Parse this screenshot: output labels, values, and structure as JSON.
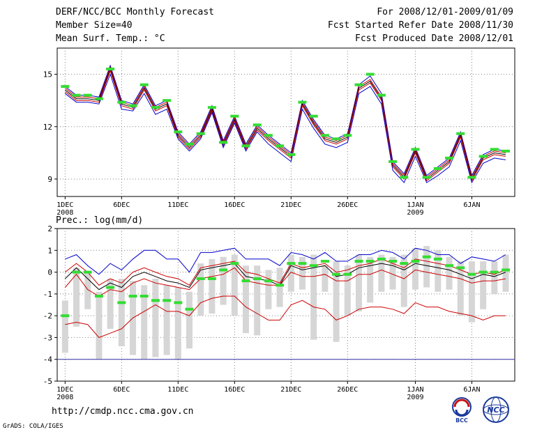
{
  "header": {
    "title": "DERF/NCC/BCC Monthly Forecast",
    "member_size": "Member Size=40",
    "variable": "Mean Surf. Temp.: °C",
    "period": "For 2008/12/01-2009/01/09",
    "start_date": "Fcst Started Refer Date 2008/11/30",
    "produced_date": "Fcst Produced Date 2008/12/01"
  },
  "footer": {
    "url": "http://cmdp.ncc.cma.gov.cn",
    "credit": "GrADS: COLA/IGES",
    "logo_bcc": "BCC",
    "logo_ncc": "NCC"
  },
  "colors": {
    "ensemble_mean": "#000000",
    "spread_bounds": "#cc0000",
    "extreme_bounds": "#0000cc",
    "observation_marks": "#33dd33",
    "box_range": "#d6d6d6",
    "grid": "#808080"
  },
  "chart_data": [
    {
      "type": "line",
      "title": "Mean Surf. Temp.: °C",
      "xlabel": "",
      "ylabel": "",
      "x": [
        1,
        2,
        3,
        4,
        5,
        6,
        7,
        8,
        9,
        10,
        11,
        12,
        13,
        14,
        15,
        16,
        17,
        18,
        19,
        20,
        21,
        22,
        23,
        24,
        25,
        26,
        27,
        28,
        29,
        30,
        31,
        32,
        33,
        34,
        35,
        36,
        37,
        38,
        39,
        40
      ],
      "xticks": [
        {
          "day": 1,
          "label": "1DEC",
          "sub": "2008"
        },
        {
          "day": 6,
          "label": "6DEC",
          "sub": ""
        },
        {
          "day": 11,
          "label": "11DEC",
          "sub": ""
        },
        {
          "day": 16,
          "label": "16DEC",
          "sub": ""
        },
        {
          "day": 21,
          "label": "21DEC",
          "sub": ""
        },
        {
          "day": 26,
          "label": "26DEC",
          "sub": ""
        },
        {
          "day": 32,
          "label": "1JAN",
          "sub": "2009"
        },
        {
          "day": 37,
          "label": "6JAN",
          "sub": ""
        }
      ],
      "yticks": [
        9,
        12,
        15
      ],
      "ylim": [
        8,
        16.5
      ],
      "xlim": [
        0.3,
        40.8
      ],
      "series": [
        {
          "name": "max",
          "color": "#0000cc",
          "values": [
            14.3,
            13.8,
            13.8,
            13.7,
            15.5,
            13.5,
            13.3,
            14.4,
            13.2,
            13.5,
            11.7,
            11.0,
            11.7,
            13.2,
            11.2,
            12.6,
            11.0,
            12.1,
            11.5,
            11.0,
            10.5,
            13.5,
            12.4,
            11.5,
            11.3,
            11.6,
            14.4,
            14.9,
            13.9,
            10.0,
            9.3,
            10.8,
            9.2,
            9.7,
            10.2,
            11.7,
            9.2,
            10.4,
            10.7,
            10.6
          ]
        },
        {
          "name": "upper",
          "color": "#cc0000",
          "values": [
            14.2,
            13.7,
            13.7,
            13.6,
            15.4,
            13.4,
            13.2,
            14.3,
            13.1,
            13.4,
            11.6,
            10.9,
            11.6,
            13.1,
            11.1,
            12.5,
            10.9,
            12.0,
            11.4,
            10.9,
            10.4,
            13.4,
            12.3,
            11.4,
            11.2,
            11.5,
            14.3,
            14.7,
            13.7,
            9.9,
            9.2,
            10.7,
            9.1,
            9.6,
            10.1,
            11.6,
            9.1,
            10.3,
            10.6,
            10.5
          ]
        },
        {
          "name": "mean",
          "color": "#000000",
          "values": [
            14.1,
            13.6,
            13.6,
            13.5,
            15.3,
            13.3,
            13.1,
            14.2,
            13.0,
            13.3,
            11.5,
            10.8,
            11.5,
            13.0,
            11.0,
            12.4,
            10.8,
            11.9,
            11.3,
            10.8,
            10.3,
            13.3,
            12.2,
            11.3,
            11.1,
            11.4,
            14.2,
            14.6,
            13.6,
            9.8,
            9.1,
            10.6,
            9.0,
            9.5,
            10.0,
            11.5,
            9.0,
            10.2,
            10.5,
            10.4
          ]
        },
        {
          "name": "lower",
          "color": "#cc0000",
          "values": [
            14.0,
            13.5,
            13.5,
            13.4,
            15.2,
            13.2,
            13.0,
            14.1,
            12.9,
            13.2,
            11.4,
            10.7,
            11.4,
            12.9,
            10.9,
            12.3,
            10.7,
            11.8,
            11.2,
            10.7,
            10.2,
            13.2,
            12.1,
            11.2,
            11.0,
            11.3,
            14.1,
            14.5,
            13.5,
            9.7,
            9.0,
            10.5,
            8.9,
            9.4,
            9.9,
            11.4,
            8.9,
            10.1,
            10.4,
            10.3
          ]
        },
        {
          "name": "min",
          "color": "#0000cc",
          "values": [
            13.9,
            13.4,
            13.4,
            13.3,
            15.0,
            13.0,
            12.9,
            13.9,
            12.7,
            13.0,
            11.3,
            10.6,
            11.3,
            12.8,
            10.8,
            12.2,
            10.6,
            11.7,
            11.0,
            10.5,
            10.0,
            13.0,
            11.9,
            11.0,
            10.8,
            11.1,
            13.9,
            14.3,
            13.3,
            9.5,
            8.8,
            10.3,
            8.8,
            9.2,
            9.7,
            11.2,
            8.8,
            9.9,
            10.2,
            10.1
          ]
        }
      ],
      "observations": [
        14.3,
        13.8,
        13.8,
        13.6,
        15.3,
        13.4,
        13.2,
        14.4,
        13.1,
        13.5,
        11.7,
        11.0,
        11.6,
        13.1,
        11.1,
        12.6,
        10.9,
        12.1,
        11.5,
        10.9,
        10.4,
        13.4,
        12.6,
        11.5,
        11.3,
        11.5,
        14.4,
        15.0,
        13.8,
        10.0,
        9.1,
        10.7,
        9.1,
        9.6,
        10.2,
        11.6,
        9.1,
        10.3,
        10.7,
        10.6
      ]
    },
    {
      "type": "bar",
      "title": "Prec.: log(mm/d)",
      "xlabel": "",
      "ylabel": "",
      "x": [
        1,
        2,
        3,
        4,
        5,
        6,
        7,
        8,
        9,
        10,
        11,
        12,
        13,
        14,
        15,
        16,
        17,
        18,
        19,
        20,
        21,
        22,
        23,
        24,
        25,
        26,
        27,
        28,
        29,
        30,
        31,
        32,
        33,
        34,
        35,
        36,
        37,
        38,
        39,
        40
      ],
      "xticks": [
        {
          "day": 1,
          "label": "1DEC",
          "sub": "2008"
        },
        {
          "day": 6,
          "label": "6DEC",
          "sub": ""
        },
        {
          "day": 11,
          "label": "11DEC",
          "sub": ""
        },
        {
          "day": 16,
          "label": "16DEC",
          "sub": ""
        },
        {
          "day": 21,
          "label": "21DEC",
          "sub": ""
        },
        {
          "day": 26,
          "label": "26DEC",
          "sub": ""
        },
        {
          "day": 32,
          "label": "1JAN",
          "sub": "2009"
        },
        {
          "day": 37,
          "label": "6JAN",
          "sub": ""
        }
      ],
      "yticks": [
        -5,
        -4,
        -3,
        -2,
        -1,
        0,
        1,
        2
      ],
      "ylim": [
        -5,
        2
      ],
      "xlim": [
        0.3,
        40.8
      ],
      "floor_line": -4,
      "boxes": [
        {
          "low": -3.7,
          "high": -1.3
        },
        {
          "low": -2.5,
          "high": 0.2
        },
        {
          "low": -1.7,
          "high": 0.0
        },
        {
          "low": -4.0,
          "high": -0.9
        },
        {
          "low": -2.6,
          "high": -0.3
        },
        {
          "low": -3.4,
          "high": -0.3
        },
        {
          "low": -3.8,
          "high": -0.4
        },
        {
          "low": -4.0,
          "high": -0.6
        },
        {
          "low": -3.9,
          "high": -0.3
        },
        {
          "low": -3.8,
          "high": -0.6
        },
        {
          "low": -4.0,
          "high": -0.7
        },
        {
          "low": -3.5,
          "high": -0.9
        },
        {
          "low": -2.0,
          "high": 0.4
        },
        {
          "low": -1.9,
          "high": 0.6
        },
        {
          "low": -1.5,
          "high": 0.7
        },
        {
          "low": -2.0,
          "high": 0.8
        },
        {
          "low": -2.8,
          "high": 0.3
        },
        {
          "low": -2.9,
          "high": 0.3
        },
        {
          "low": -1.7,
          "high": 0.1
        },
        {
          "low": -1.6,
          "high": 0.2
        },
        {
          "low": -0.9,
          "high": 0.8
        },
        {
          "low": -0.8,
          "high": 0.7
        },
        {
          "low": -3.1,
          "high": 0.8
        },
        {
          "low": -0.9,
          "high": 0.3
        },
        {
          "low": -3.2,
          "high": 0.5
        },
        {
          "low": -2.0,
          "high": 0.3
        },
        {
          "low": -1.8,
          "high": 0.8
        },
        {
          "low": -1.4,
          "high": 0.7
        },
        {
          "low": -0.9,
          "high": 0.8
        },
        {
          "low": -0.8,
          "high": 0.7
        },
        {
          "low": -1.6,
          "high": 0.8
        },
        {
          "low": -0.8,
          "high": 1.1
        },
        {
          "low": -0.7,
          "high": 1.2
        },
        {
          "low": -0.9,
          "high": 1.0
        },
        {
          "low": -0.8,
          "high": 0.7
        },
        {
          "low": -2.0,
          "high": 0.5
        },
        {
          "low": -2.3,
          "high": 0.5
        },
        {
          "low": -1.7,
          "high": 0.5
        },
        {
          "low": -1.0,
          "high": 0.5
        },
        {
          "low": -0.9,
          "high": 0.8
        }
      ],
      "series": [
        {
          "name": "max",
          "color": "#0000cc",
          "values": [
            0.6,
            0.8,
            0.3,
            -0.1,
            0.4,
            0.1,
            0.6,
            1.0,
            1.0,
            0.6,
            0.6,
            0.0,
            0.9,
            0.9,
            1.0,
            1.1,
            0.6,
            0.6,
            0.6,
            0.3,
            0.9,
            0.8,
            0.6,
            0.9,
            0.5,
            0.5,
            0.8,
            0.8,
            1.0,
            0.9,
            0.6,
            1.1,
            1.0,
            0.8,
            0.8,
            0.4,
            0.7,
            0.6,
            0.5,
            0.8
          ]
        },
        {
          "name": "upper",
          "color": "#cc0000",
          "values": [
            0.0,
            0.4,
            0.0,
            -0.6,
            -0.3,
            -0.5,
            0.0,
            0.2,
            0.0,
            -0.2,
            -0.3,
            -0.6,
            0.2,
            0.3,
            0.4,
            0.5,
            0.0,
            -0.1,
            -0.3,
            -0.5,
            0.4,
            0.2,
            0.3,
            0.4,
            0.0,
            0.1,
            0.3,
            0.4,
            0.6,
            0.4,
            0.2,
            0.6,
            0.5,
            0.4,
            0.3,
            0.1,
            -0.1,
            0.0,
            -0.1,
            0.1
          ]
        },
        {
          "name": "mean",
          "color": "#000000",
          "values": [
            -0.3,
            0.2,
            -0.3,
            -0.8,
            -0.5,
            -0.7,
            -0.2,
            0.0,
            -0.2,
            -0.4,
            -0.5,
            -0.7,
            0.1,
            0.2,
            0.3,
            0.4,
            -0.2,
            -0.3,
            -0.4,
            -0.6,
            0.3,
            0.1,
            0.2,
            0.3,
            -0.2,
            -0.1,
            0.2,
            0.3,
            0.4,
            0.3,
            0.1,
            0.4,
            0.3,
            0.2,
            0.1,
            -0.1,
            -0.3,
            -0.1,
            -0.2,
            0.0
          ]
        },
        {
          "name": "lower",
          "color": "#cc0000",
          "values": [
            -0.7,
            -0.1,
            -0.8,
            -1.1,
            -0.8,
            -0.9,
            -0.5,
            -0.3,
            -0.5,
            -0.6,
            -0.7,
            -0.8,
            -0.3,
            -0.2,
            -0.1,
            0.2,
            -0.4,
            -0.5,
            -0.6,
            -0.6,
            0.0,
            -0.2,
            -0.2,
            -0.1,
            -0.4,
            -0.4,
            -0.1,
            -0.1,
            0.1,
            -0.1,
            -0.3,
            0.1,
            0.0,
            -0.1,
            -0.2,
            -0.3,
            -0.5,
            -0.4,
            -0.4,
            -0.3
          ]
        },
        {
          "name": "min",
          "color": "#cc0000",
          "values": [
            -2.4,
            -2.3,
            -2.4,
            -3.0,
            -2.8,
            -2.6,
            -2.1,
            -1.8,
            -1.5,
            -1.8,
            -1.8,
            -2.0,
            -1.4,
            -1.2,
            -1.1,
            -1.1,
            -1.6,
            -1.9,
            -2.2,
            -2.2,
            -1.5,
            -1.3,
            -1.6,
            -1.7,
            -2.2,
            -2.0,
            -1.7,
            -1.6,
            -1.6,
            -1.7,
            -1.9,
            -1.4,
            -1.6,
            -1.6,
            -1.8,
            -1.9,
            -2.0,
            -2.2,
            -2.0,
            -2.0
          ]
        }
      ],
      "observations": [
        -2.0,
        0.0,
        0.0,
        -1.1,
        -0.7,
        -1.4,
        -1.1,
        -1.1,
        -1.3,
        -1.3,
        -1.4,
        -1.7,
        -0.3,
        -0.3,
        0.1,
        0.4,
        -0.4,
        -0.3,
        -0.4,
        -0.6,
        0.4,
        0.4,
        0.3,
        0.5,
        -0.1,
        -0.1,
        0.5,
        0.5,
        0.6,
        0.5,
        0.4,
        0.5,
        0.7,
        0.6,
        0.3,
        0.2,
        -0.1,
        0.0,
        0.0,
        0.1
      ]
    }
  ]
}
